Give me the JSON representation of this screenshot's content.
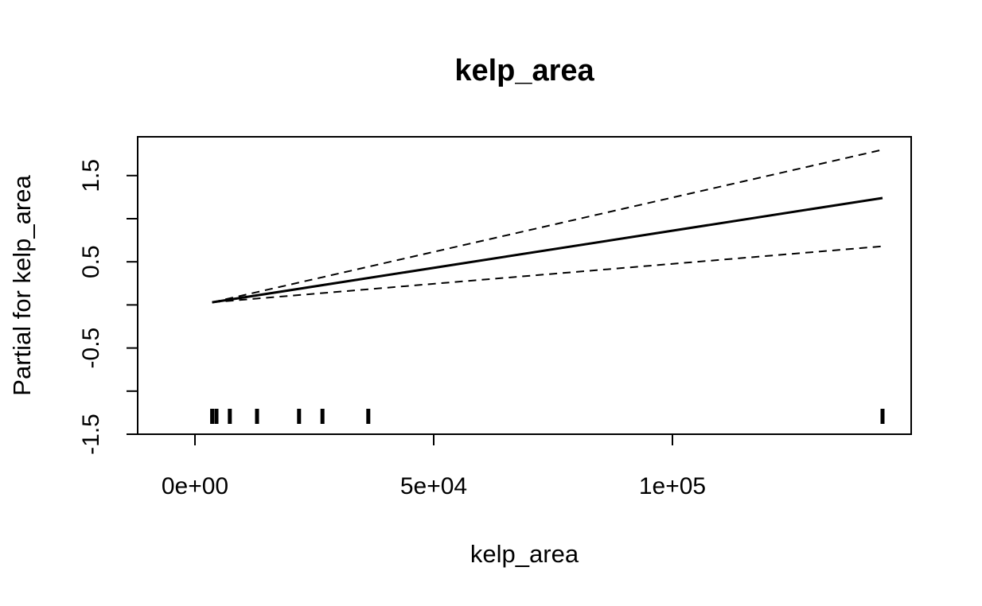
{
  "chart_data": {
    "type": "line",
    "title": "kelp_area",
    "xlabel": "kelp_area",
    "ylabel": "Partial for kelp_area",
    "xlim": [
      -12000,
      150000
    ],
    "ylim": [
      -1.5,
      1.95
    ],
    "x_ticks": [
      0,
      50000,
      100000
    ],
    "x_tick_labels": [
      "0e+00",
      "5e+04",
      "1e+05"
    ],
    "y_ticks": [
      -1.5,
      -1.0,
      -0.5,
      0.0,
      0.5,
      1.0,
      1.5
    ],
    "y_tick_labels": [
      "-1.5",
      "",
      "-0.5",
      "",
      "0.5",
      "",
      "1.5"
    ],
    "grid": false,
    "legend": "none",
    "series": [
      {
        "style": "solid",
        "x": [
          3600,
          144000
        ],
        "y": [
          0.03,
          1.24
        ]
      },
      {
        "style": "dashed",
        "x": [
          3600,
          144000
        ],
        "y": [
          0.03,
          1.8
        ]
      },
      {
        "style": "dashed",
        "x": [
          3600,
          144000
        ],
        "y": [
          0.03,
          0.68
        ]
      }
    ],
    "rug": [
      3600,
      4500,
      7300,
      13000,
      21800,
      26700,
      36300,
      144000
    ]
  }
}
